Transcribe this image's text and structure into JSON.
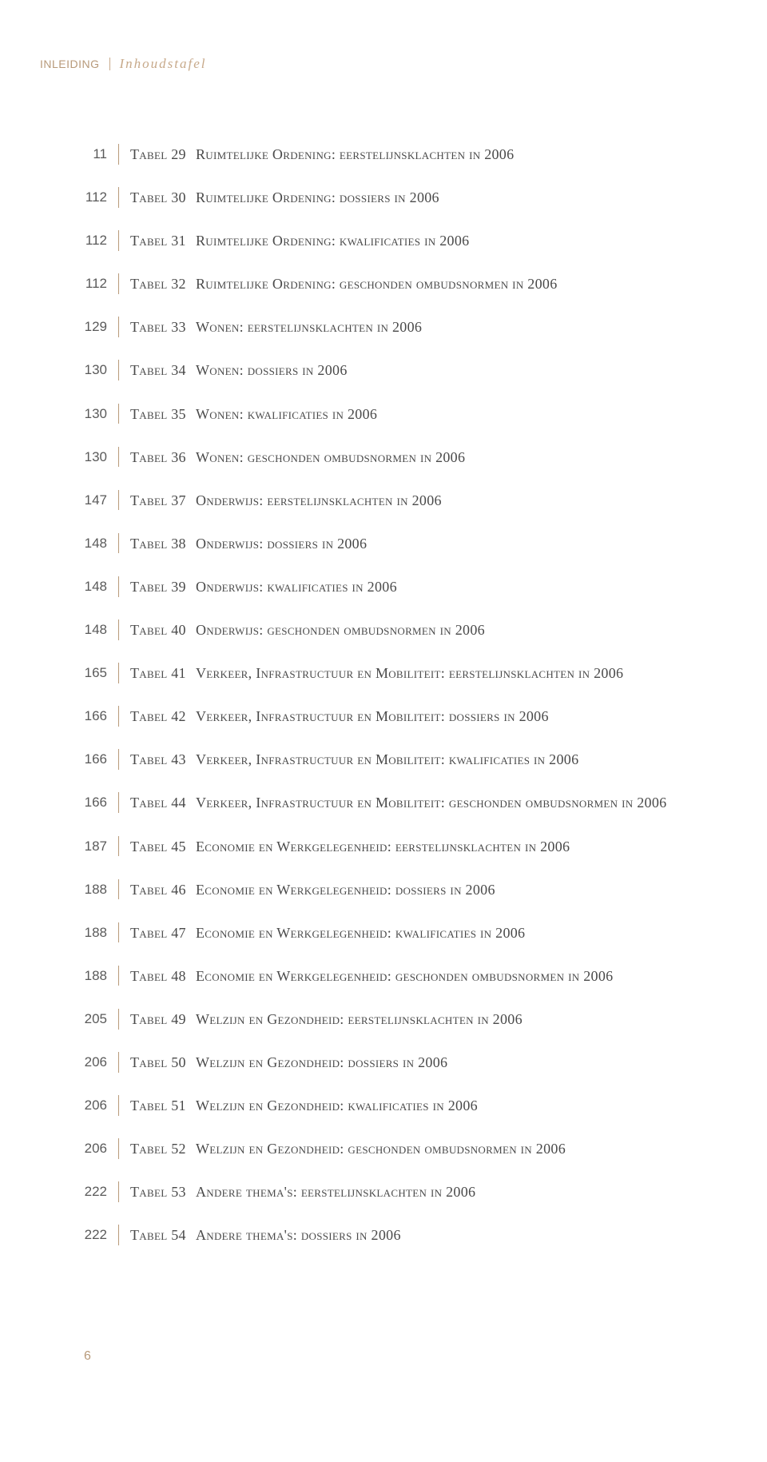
{
  "header": {
    "section": "INLEIDING",
    "subtitle": "Inhoudstafel"
  },
  "entries": [
    {
      "page": "11",
      "label": "Tabel 29",
      "desc": "Ruimtelijke Ordening: eerstelijnsklachten in 2006"
    },
    {
      "page": "112",
      "label": "Tabel 30",
      "desc": "Ruimtelijke Ordening: dossiers in 2006"
    },
    {
      "page": "112",
      "label": "Tabel 31",
      "desc": "Ruimtelijke Ordening: kwalificaties in 2006"
    },
    {
      "page": "112",
      "label": "Tabel 32",
      "desc": "Ruimtelijke Ordening: geschonden ombudsnormen in 2006"
    },
    {
      "page": "129",
      "label": "Tabel 33",
      "desc": "Wonen: eerstelijnsklachten in 2006"
    },
    {
      "page": "130",
      "label": "Tabel 34",
      "desc": "Wonen: dossiers in 2006"
    },
    {
      "page": "130",
      "label": "Tabel 35",
      "desc": "Wonen: kwalificaties in 2006"
    },
    {
      "page": "130",
      "label": "Tabel 36",
      "desc": "Wonen: geschonden ombudsnormen in 2006"
    },
    {
      "page": "147",
      "label": "Tabel 37",
      "desc": "Onderwijs: eerstelijnsklachten in 2006"
    },
    {
      "page": "148",
      "label": "Tabel 38",
      "desc": "Onderwijs: dossiers in 2006"
    },
    {
      "page": "148",
      "label": "Tabel 39",
      "desc": "Onderwijs: kwalificaties in 2006"
    },
    {
      "page": "148",
      "label": "Tabel 40",
      "desc": "Onderwijs: geschonden ombudsnormen in 2006"
    },
    {
      "page": "165",
      "label": "Tabel 41",
      "desc": "Verkeer, Infrastructuur en Mobiliteit: eerstelijnsklachten in 2006"
    },
    {
      "page": "166",
      "label": "Tabel 42",
      "desc": "Verkeer, Infrastructuur en Mobiliteit: dossiers in 2006"
    },
    {
      "page": "166",
      "label": "Tabel 43",
      "desc": "Verkeer, Infrastructuur en Mobiliteit: kwalificaties in 2006"
    },
    {
      "page": "166",
      "label": "Tabel 44",
      "desc": "Verkeer, Infrastructuur en Mobiliteit: geschonden ombudsnormen in 2006"
    },
    {
      "page": "187",
      "label": "Tabel 45",
      "desc": "Economie en Werkgelegenheid: eerstelijnsklachten in 2006"
    },
    {
      "page": "188",
      "label": "Tabel 46",
      "desc": "Economie en Werkgelegenheid: dossiers in 2006"
    },
    {
      "page": "188",
      "label": "Tabel 47",
      "desc": "Economie en Werkgelegenheid: kwalificaties in 2006"
    },
    {
      "page": "188",
      "label": "Tabel 48",
      "desc": "Economie en Werkgelegenheid: geschonden ombudsnormen in 2006"
    },
    {
      "page": "205",
      "label": "Tabel 49",
      "desc": "Welzijn en Gezondheid: eerstelijnsklachten in 2006"
    },
    {
      "page": "206",
      "label": "Tabel 50",
      "desc": "Welzijn en Gezondheid: dossiers in 2006"
    },
    {
      "page": "206",
      "label": "Tabel 51",
      "desc": "Welzijn en Gezondheid: kwalificaties in 2006"
    },
    {
      "page": "206",
      "label": "Tabel 52",
      "desc": "Welzijn en Gezondheid: geschonden ombudsnormen in 2006"
    },
    {
      "page": "222",
      "label": "Tabel 53",
      "desc": "Andere thema's: eerstelijnsklachten in 2006"
    },
    {
      "page": "222",
      "label": "Tabel 54",
      "desc": "Andere thema's: dossiers in 2006"
    }
  ],
  "footer": {
    "page_number": "6"
  },
  "colors": {
    "accent": "#b89a7a",
    "text": "#4a4a4a",
    "background": "#ffffff"
  }
}
